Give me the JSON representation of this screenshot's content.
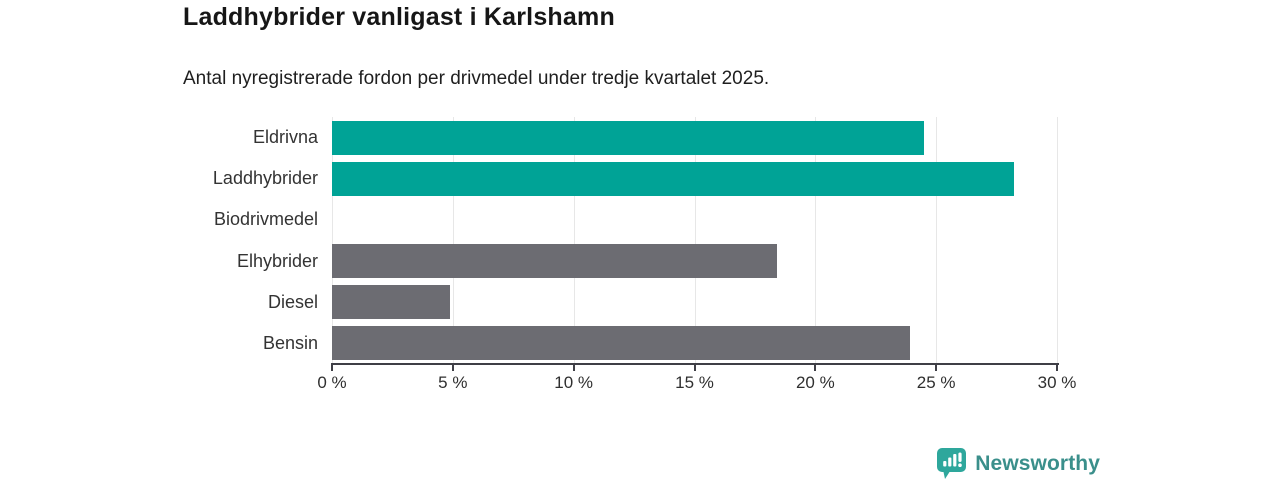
{
  "header": {
    "title": "Laddhybrider vanligast i Karlshamn",
    "subtitle": "Antal nyregistrerade fordon per drivmedel under tredje kvartalet 2025."
  },
  "chart_data": {
    "type": "bar",
    "orientation": "horizontal",
    "title": "Laddhybrider vanligast i Karlshamn",
    "subtitle": "Antal nyregistrerade fordon per drivmedel under tredje kvartalet 2025.",
    "categories": [
      "Eldrivna",
      "Laddhybrider",
      "Biodrivmedel",
      "Elhybrider",
      "Diesel",
      "Bensin"
    ],
    "values": [
      24.5,
      28.2,
      0,
      18.4,
      4.9,
      23.9
    ],
    "unit": "%",
    "bar_colors": [
      "#00a396",
      "#00a396",
      "#6c6c72",
      "#6c6c72",
      "#6c6c72",
      "#6c6c72"
    ],
    "highlight_color": "#00a396",
    "default_color": "#6c6c72",
    "xlabel": "",
    "ylabel": "",
    "x_axis": {
      "min": 0,
      "max": 30,
      "ticks": [
        0,
        5,
        10,
        15,
        20,
        25,
        30
      ],
      "tick_labels": [
        "0 %",
        "5 %",
        "10 %",
        "15 %",
        "20 %",
        "25 %",
        "30 %"
      ]
    },
    "grid": true,
    "gridline_color": "#e7e7e7",
    "legend": false
  },
  "footer": {
    "brand": "Newsworthy",
    "brand_color": "#3a8f8b",
    "logo_icon": "chart-speech-bubble-icon",
    "logo_color": "#2ea79c"
  }
}
